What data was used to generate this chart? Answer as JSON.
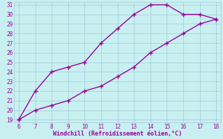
{
  "xlabel": "Windchill (Refroidissement éolien,°C)",
  "bg_color": "#c8f0f0",
  "grid_color": "#a0c8d8",
  "line_color": "#990099",
  "line1_x": [
    6,
    7,
    8,
    9,
    10,
    11,
    12,
    13,
    14,
    15,
    16,
    17,
    18
  ],
  "line1_y": [
    19,
    22,
    24,
    24.5,
    25,
    27,
    28.5,
    30,
    31,
    31,
    30,
    30,
    29.5
  ],
  "line2_x": [
    6,
    7,
    8,
    9,
    10,
    11,
    12,
    13,
    14,
    15,
    16,
    17,
    18
  ],
  "line2_y": [
    19,
    20,
    20.5,
    21,
    22,
    22.5,
    23.5,
    24.5,
    26,
    27,
    28,
    29,
    29.5
  ],
  "xlim": [
    5.7,
    18.3
  ],
  "ylim": [
    18.7,
    31.3
  ],
  "xticks": [
    6,
    7,
    8,
    9,
    10,
    11,
    12,
    13,
    14,
    15,
    16,
    17,
    18
  ],
  "yticks": [
    19,
    20,
    21,
    22,
    23,
    24,
    25,
    26,
    27,
    28,
    29,
    30,
    31
  ],
  "marker": "+",
  "linewidth": 1.0,
  "markersize": 4,
  "markeredgewidth": 1.0
}
